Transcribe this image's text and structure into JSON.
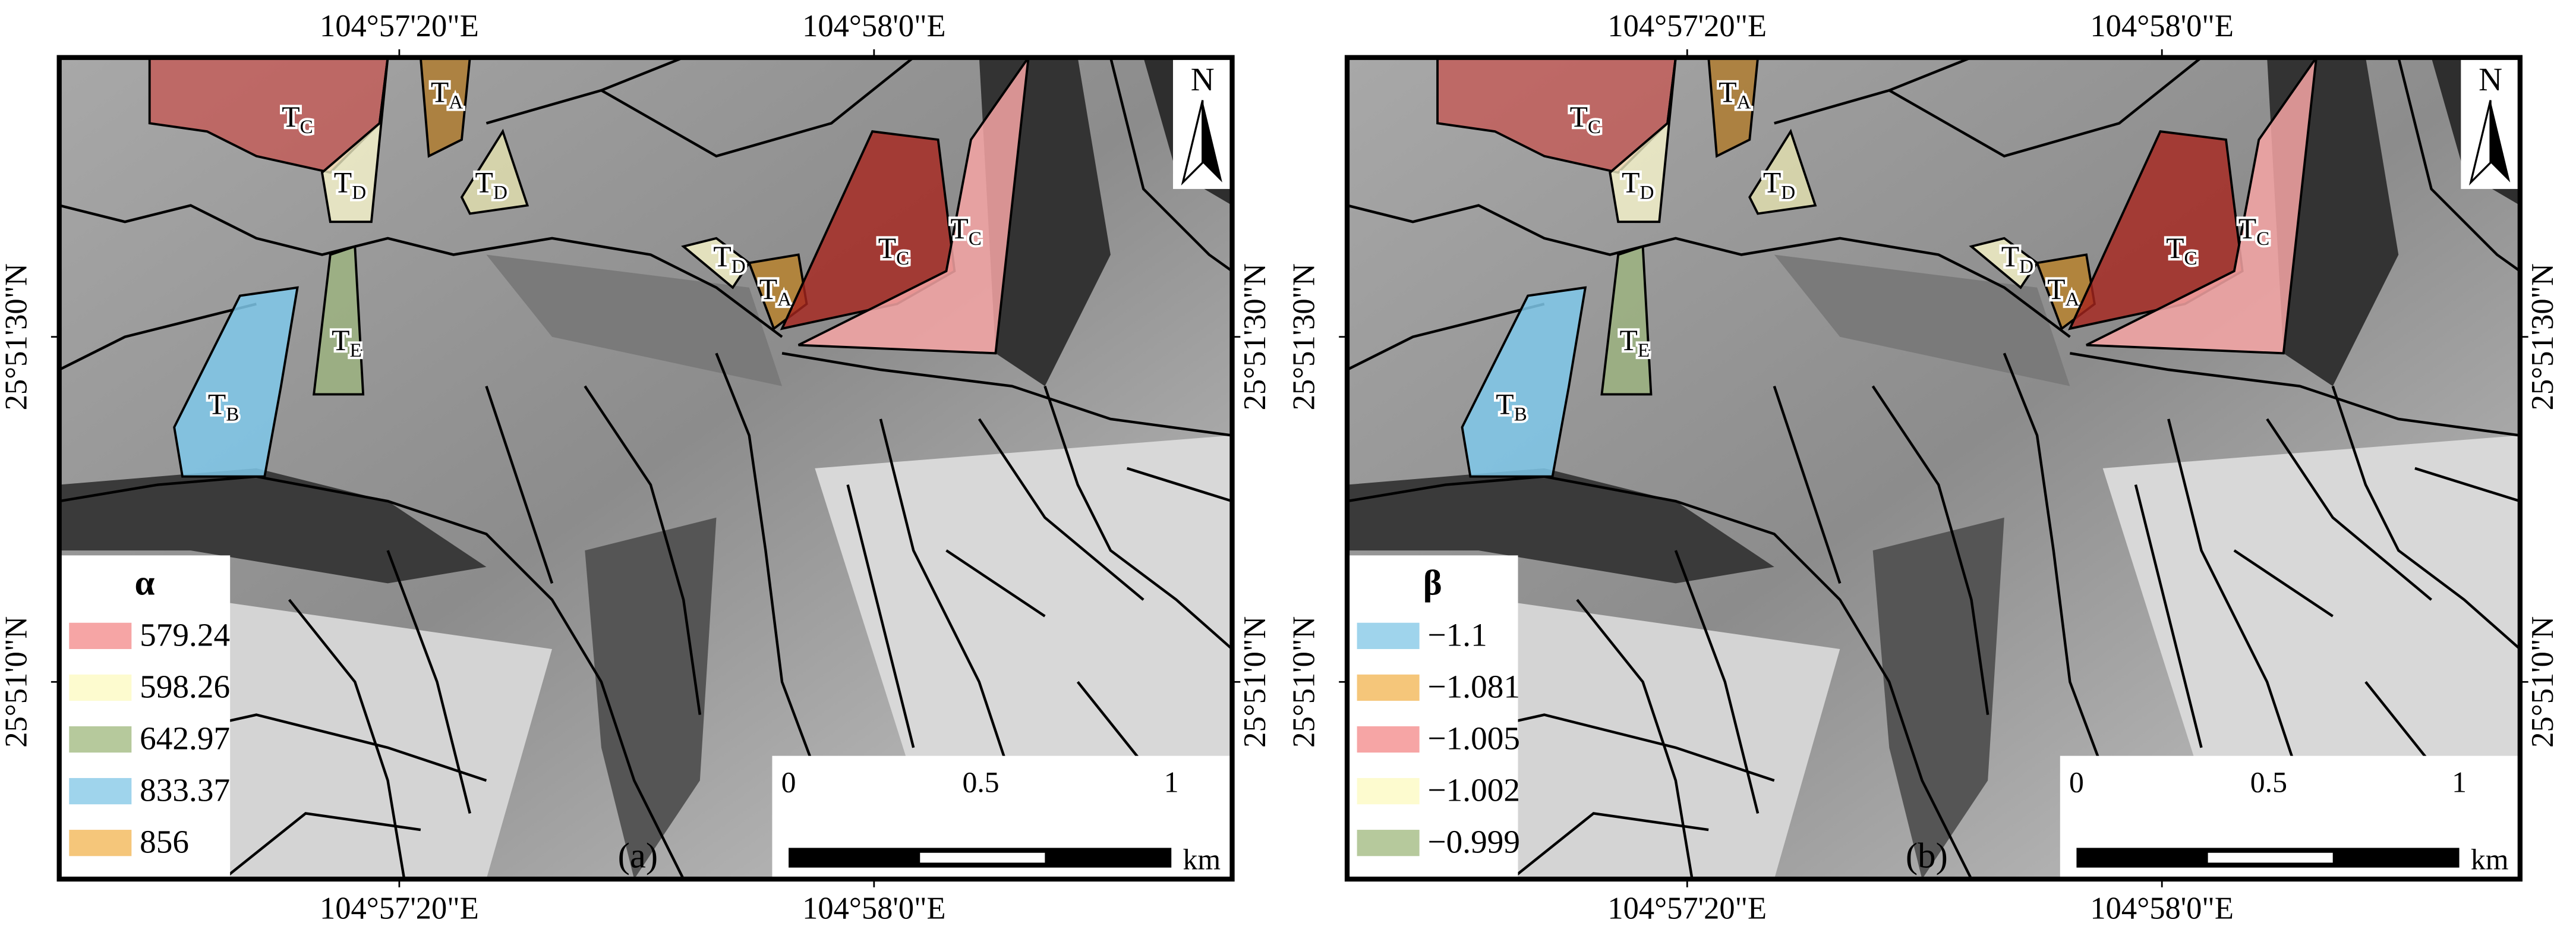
{
  "north": "N",
  "scale_bar": {
    "ticks": [
      "0",
      "0.5",
      "1"
    ],
    "unit": "km"
  },
  "zone_labels": [
    {
      "main": "T",
      "sub": "C"
    },
    {
      "main": "T",
      "sub": "D"
    },
    {
      "main": "T",
      "sub": "A"
    },
    {
      "main": "T",
      "sub": "D"
    },
    {
      "main": "T",
      "sub": "B"
    },
    {
      "main": "T",
      "sub": "E"
    },
    {
      "main": "T",
      "sub": "D"
    },
    {
      "main": "T",
      "sub": "A"
    },
    {
      "main": "T",
      "sub": "C"
    },
    {
      "main": "T",
      "sub": "C"
    }
  ],
  "panels": [
    {
      "tag": "(a)",
      "legend_title": "α",
      "legend": [
        {
          "label": "579.24",
          "color": "#f6a5a5"
        },
        {
          "label": "598.26",
          "color": "#fdfbcf"
        },
        {
          "label": "642.97",
          "color": "#b6c99c"
        },
        {
          "label": "833.37",
          "color": "#9fd4ec"
        },
        {
          "label": "856",
          "color": "#f5c67a"
        }
      ],
      "top_labels": [
        "104°57'20\"E",
        "104°58'0\"E"
      ],
      "bottom_labels": [
        "104°57'20\"E",
        "104°58'0\"E"
      ],
      "left_labels": [
        "25°51'30\"N",
        "25°51'0\"N"
      ],
      "right_labels": [
        "25°51'30\"N",
        "25°51'0\"N"
      ]
    },
    {
      "tag": "(b)",
      "legend_title": "β",
      "legend": [
        {
          "label": "−1.1",
          "color": "#9fd4ec"
        },
        {
          "label": "−1.081",
          "color": "#f5c67a"
        },
        {
          "label": "−1.005",
          "color": "#f6a5a5"
        },
        {
          "label": "−1.002",
          "color": "#fdfbcf"
        },
        {
          "label": "−0.999",
          "color": "#b6c99c"
        }
      ],
      "top_labels": [
        "104°57'20\"E",
        "104°58'0\"E"
      ],
      "bottom_labels": [
        "104°57'20\"E",
        "104°58'0\"E"
      ],
      "left_labels": [
        "25°51'30\"N",
        "25°51'0\"N"
      ],
      "right_labels": [
        "25°51'30\"N",
        "25°51'0\"N"
      ]
    }
  ]
}
